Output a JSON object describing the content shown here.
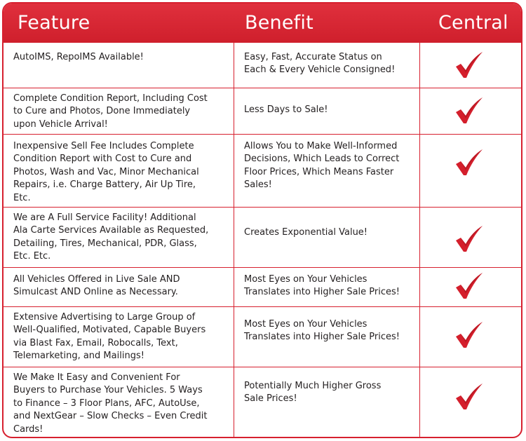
{
  "header": {
    "feature": "Feature",
    "benefit": "Benefit",
    "central": "Central"
  },
  "colors": {
    "accent": "#d7202f",
    "check": "#d41f2c",
    "text": "#231f20"
  },
  "rows": [
    {
      "feature": "AutoIMS, RepoIMS Available!",
      "benefit": "Easy, Fast, Accurate Status on\nEach & Every Vehicle Consigned!",
      "central": "check-icon"
    },
    {
      "feature": "Complete Condition Report, Including Cost\nto Cure and Photos, Done Immediately\nupon Vehicle Arrival!",
      "benefit": "Less Days to Sale!",
      "central": "check-icon"
    },
    {
      "feature": "Inexpensive Sell Fee Includes Complete\nCondition Report with Cost to Cure and\nPhotos, Wash and Vac, Minor Mechanical\nRepairs, i.e. Charge Battery, Air Up Tire,\nEtc.",
      "benefit": "Allows You to Make Well-Informed\nDecisions, Which Leads to Correct\nFloor Prices, Which Means Faster\nSales!",
      "central": "check-icon"
    },
    {
      "feature": "We are A Full Service Facility! Additional\nAla Carte Services Available as Requested,\nDetailing, Tires, Mechanical, PDR, Glass,\nEtc. Etc.",
      "benefit": "Creates Exponential Value!",
      "central": "check-icon"
    },
    {
      "feature": "All Vehicles Offered in Live Sale AND\nSimulcast AND Online as Necessary.",
      "benefit": "Most Eyes on Your Vehicles\nTranslates into Higher Sale Prices!",
      "central": "check-icon"
    },
    {
      "feature": "Extensive Advertising to Large Group of\nWell-Qualified, Motivated, Capable Buyers\nvia Blast Fax, Email, Robocalls, Text,\nTelemarketing, and Mailings!",
      "benefit": "Most Eyes on Your Vehicles\nTranslates into Higher Sale Prices!",
      "central": "check-icon"
    },
    {
      "feature": "We Make It Easy and Convenient For\nBuyers to Purchase Your Vehicles.  5 Ways\nto Finance – 3 Floor Plans, AFC, AutoUse,\nand NextGear – Slow Checks – Even Credit\nCards!",
      "benefit": "Potentially Much Higher Gross\nSale Prices!",
      "central": "check-icon"
    }
  ]
}
